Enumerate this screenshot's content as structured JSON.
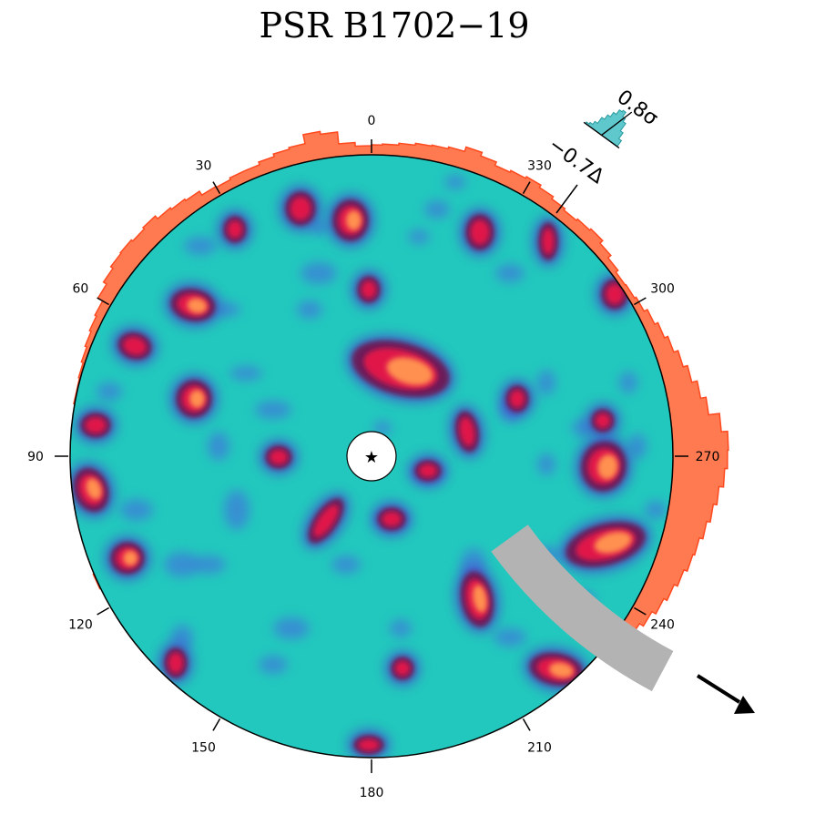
{
  "title": "PSR B1702−19",
  "disk": {
    "background_color": "#22c8bd",
    "center_marker": "★"
  },
  "angle_ticks": [
    "0",
    "30",
    "60",
    "90",
    "120",
    "150",
    "180",
    "210",
    "240",
    "270",
    "300",
    "330"
  ],
  "histogram": {
    "color": "#ff7a50",
    "edge_color": "#ff4a20"
  },
  "indicator": {
    "sigma_label": "0.8σ",
    "delta_label": "−0.7Δ",
    "histogram_color": "#5ec8cc"
  },
  "colors": {
    "hotspot_outer": "#4a3fd0",
    "hotspot_mid": "#6a1a5a",
    "hotspot_core": "#e01848",
    "hotspot_peak": "#ff9050",
    "faint_blob": "#3f7cd8"
  }
}
